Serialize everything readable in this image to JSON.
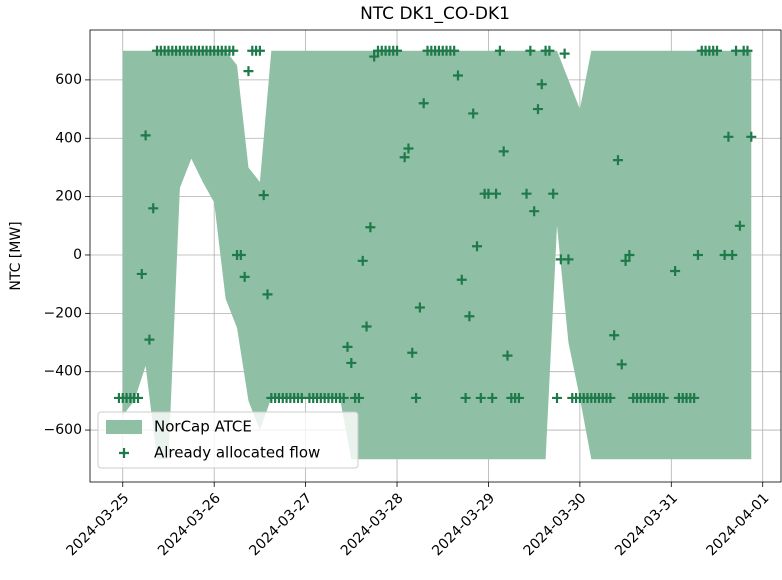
{
  "chart_data": {
    "type": "combo",
    "title": "NTC DK1_CO-DK1",
    "y_label": "NTC [MW]",
    "xlim": [
      "2024-03-24T15:24",
      "2024-04-01T04:48"
    ],
    "xticks": [
      "2024-03-25",
      "2024-03-26",
      "2024-03-27",
      "2024-03-28",
      "2024-03-29",
      "2024-03-30",
      "2024-03-31",
      "2024-04-01"
    ],
    "ylim": [
      -778,
      771
    ],
    "yticks": [
      {
        "value": -600,
        "label": "−600"
      },
      {
        "value": -400,
        "label": "−400"
      },
      {
        "value": -200,
        "label": "−200"
      },
      0,
      200,
      400,
      600
    ],
    "grid": true,
    "legend": "lower left",
    "series": [
      {
        "name": "NorCap ATCE",
        "type": "band",
        "color": "#8fbfa5",
        "x": [
          "2024-03-25T00:00",
          "2024-03-25T03:00",
          "2024-03-25T06:00",
          "2024-03-25T09:00",
          "2024-03-25T12:00",
          "2024-03-25T15:00",
          "2024-03-25T18:00",
          "2024-03-25T21:00",
          "2024-03-26T00:00",
          "2024-03-26T03:00",
          "2024-03-26T06:00",
          "2024-03-26T09:00",
          "2024-03-26T12:00",
          "2024-03-26T15:00",
          "2024-03-26T18:00",
          "2024-03-26T21:00",
          "2024-03-27T00:00",
          "2024-03-27T03:00",
          "2024-03-27T06:00",
          "2024-03-27T09:00",
          "2024-03-27T12:00",
          "2024-03-27T15:00",
          "2024-03-27T18:00",
          "2024-03-27T21:00",
          "2024-03-28T00:00",
          "2024-03-28T03:00",
          "2024-03-28T06:00",
          "2024-03-28T09:00",
          "2024-03-28T12:00",
          "2024-03-28T15:00",
          "2024-03-28T18:00",
          "2024-03-28T21:00",
          "2024-03-29T00:00",
          "2024-03-29T03:00",
          "2024-03-29T06:00",
          "2024-03-29T09:00",
          "2024-03-29T12:00",
          "2024-03-29T15:00",
          "2024-03-29T18:00",
          "2024-03-29T21:00",
          "2024-03-30T00:00",
          "2024-03-30T03:00",
          "2024-03-30T06:00",
          "2024-03-30T09:00",
          "2024-03-30T12:00",
          "2024-03-30T15:00",
          "2024-03-30T18:00",
          "2024-03-30T21:00",
          "2024-03-31T00:00",
          "2024-03-31T03:00",
          "2024-03-31T06:00",
          "2024-03-31T09:00",
          "2024-03-31T12:00",
          "2024-03-31T15:00",
          "2024-03-31T18:00",
          "2024-03-31T21:00"
        ],
        "upper": [
          700,
          700,
          700,
          700,
          700,
          700,
          700,
          700,
          700,
          700,
          650,
          300,
          250,
          700,
          700,
          700,
          700,
          700,
          700,
          700,
          700,
          700,
          700,
          700,
          700,
          700,
          700,
          700,
          700,
          700,
          700,
          700,
          700,
          700,
          700,
          700,
          700,
          700,
          700,
          600,
          500,
          700,
          700,
          700,
          700,
          700,
          700,
          700,
          700,
          700,
          700,
          700,
          700,
          700,
          700,
          700
        ],
        "lower": [
          -550,
          -500,
          -380,
          -700,
          -700,
          230,
          330,
          250,
          180,
          -150,
          -250,
          -500,
          -600,
          -490,
          -490,
          -490,
          -490,
          -490,
          -490,
          -490,
          -700,
          -700,
          -700,
          -700,
          -700,
          -700,
          -700,
          -700,
          -700,
          -700,
          -700,
          -700,
          -700,
          -700,
          -700,
          -700,
          -700,
          -700,
          100,
          -300,
          -490,
          -700,
          -700,
          -700,
          -700,
          -700,
          -700,
          -700,
          -700,
          -700,
          -700,
          -700,
          -700,
          -700,
          -700,
          -700
        ]
      },
      {
        "name": "Already allocated flow",
        "type": "scatter",
        "color": "#1f7a4a",
        "x": [
          "2024-03-24T23:00",
          "2024-03-25T00:00",
          "2024-03-25T01:00",
          "2024-03-25T02:00",
          "2024-03-25T03:00",
          "2024-03-25T04:00",
          "2024-03-25T05:00",
          "2024-03-25T06:00",
          "2024-03-25T07:00",
          "2024-03-25T08:00",
          "2024-03-25T09:00",
          "2024-03-25T10:00",
          "2024-03-25T11:00",
          "2024-03-25T12:00",
          "2024-03-25T13:00",
          "2024-03-25T14:00",
          "2024-03-25T15:00",
          "2024-03-25T16:00",
          "2024-03-25T17:00",
          "2024-03-25T18:00",
          "2024-03-25T19:00",
          "2024-03-25T20:00",
          "2024-03-25T21:00",
          "2024-03-25T22:00",
          "2024-03-25T23:00",
          "2024-03-26T00:00",
          "2024-03-26T01:00",
          "2024-03-26T02:00",
          "2024-03-26T03:00",
          "2024-03-26T04:00",
          "2024-03-26T05:00",
          "2024-03-26T06:00",
          "2024-03-26T07:00",
          "2024-03-26T08:00",
          "2024-03-26T09:00",
          "2024-03-26T10:00",
          "2024-03-26T11:00",
          "2024-03-26T12:00",
          "2024-03-26T13:00",
          "2024-03-26T14:00",
          "2024-03-26T15:00",
          "2024-03-26T16:00",
          "2024-03-26T17:00",
          "2024-03-26T18:00",
          "2024-03-26T19:00",
          "2024-03-26T20:00",
          "2024-03-26T21:00",
          "2024-03-26T22:00",
          "2024-03-26T23:00",
          "2024-03-27T01:00",
          "2024-03-27T02:00",
          "2024-03-27T03:00",
          "2024-03-27T04:00",
          "2024-03-27T05:00",
          "2024-03-27T06:00",
          "2024-03-27T07:00",
          "2024-03-27T08:00",
          "2024-03-27T09:00",
          "2024-03-27T10:00",
          "2024-03-27T11:00",
          "2024-03-27T12:00",
          "2024-03-27T13:00",
          "2024-03-27T14:00",
          "2024-03-27T15:00",
          "2024-03-27T16:00",
          "2024-03-27T17:00",
          "2024-03-27T18:00",
          "2024-03-27T19:00",
          "2024-03-27T20:00",
          "2024-03-27T21:00",
          "2024-03-27T22:00",
          "2024-03-27T23:00",
          "2024-03-28T00:00",
          "2024-03-28T02:00",
          "2024-03-28T03:00",
          "2024-03-28T04:00",
          "2024-03-28T05:00",
          "2024-03-28T06:00",
          "2024-03-28T07:00",
          "2024-03-28T08:00",
          "2024-03-28T09:00",
          "2024-03-28T10:00",
          "2024-03-28T11:00",
          "2024-03-28T12:00",
          "2024-03-28T13:00",
          "2024-03-28T14:00",
          "2024-03-28T15:00",
          "2024-03-28T16:00",
          "2024-03-28T17:00",
          "2024-03-28T18:00",
          "2024-03-28T19:00",
          "2024-03-28T20:00",
          "2024-03-28T21:00",
          "2024-03-28T22:00",
          "2024-03-28T23:00",
          "2024-03-29T00:00",
          "2024-03-29T01:00",
          "2024-03-29T02:00",
          "2024-03-29T03:00",
          "2024-03-29T04:00",
          "2024-03-29T05:00",
          "2024-03-29T06:00",
          "2024-03-29T07:00",
          "2024-03-29T08:00",
          "2024-03-29T10:00",
          "2024-03-29T11:00",
          "2024-03-29T12:00",
          "2024-03-29T13:00",
          "2024-03-29T14:00",
          "2024-03-29T15:00",
          "2024-03-29T16:00",
          "2024-03-29T17:00",
          "2024-03-29T18:00",
          "2024-03-29T19:00",
          "2024-03-29T20:00",
          "2024-03-29T21:00",
          "2024-03-29T22:00",
          "2024-03-29T23:00",
          "2024-03-30T00:00",
          "2024-03-30T01:00",
          "2024-03-30T02:00",
          "2024-03-30T03:00",
          "2024-03-30T04:00",
          "2024-03-30T05:00",
          "2024-03-30T06:00",
          "2024-03-30T07:00",
          "2024-03-30T08:00",
          "2024-03-30T09:00",
          "2024-03-30T10:00",
          "2024-03-30T11:00",
          "2024-03-30T12:00",
          "2024-03-30T13:00",
          "2024-03-30T14:00",
          "2024-03-30T15:00",
          "2024-03-30T16:00",
          "2024-03-30T17:00",
          "2024-03-30T18:00",
          "2024-03-30T19:00",
          "2024-03-30T20:00",
          "2024-03-30T21:00",
          "2024-03-30T22:00",
          "2024-03-31T01:00",
          "2024-03-31T02:00",
          "2024-03-31T03:00",
          "2024-03-31T04:00",
          "2024-03-31T05:00",
          "2024-03-31T06:00",
          "2024-03-31T07:00",
          "2024-03-31T08:00",
          "2024-03-31T09:00",
          "2024-03-31T10:00",
          "2024-03-31T11:00",
          "2024-03-31T12:00",
          "2024-03-31T14:00",
          "2024-03-31T15:00",
          "2024-03-31T16:00",
          "2024-03-31T17:00",
          "2024-03-31T18:00",
          "2024-03-31T19:00",
          "2024-03-31T20:00",
          "2024-03-31T21:00"
        ],
        "values": [
          -490,
          -490,
          -490,
          -490,
          -490,
          -490,
          -65,
          410,
          -290,
          160,
          700,
          700,
          700,
          700,
          700,
          700,
          700,
          700,
          700,
          700,
          700,
          700,
          700,
          700,
          700,
          700,
          700,
          700,
          700,
          700,
          700,
          0,
          0,
          -75,
          630,
          700,
          700,
          700,
          205,
          -135,
          -490,
          -490,
          -490,
          -490,
          -490,
          -490,
          -490,
          -490,
          -490,
          -490,
          -490,
          -490,
          -490,
          -490,
          -490,
          -490,
          -490,
          -490,
          -490,
          -315,
          -370,
          -490,
          -490,
          -20,
          -245,
          95,
          680,
          700,
          700,
          700,
          700,
          700,
          700,
          335,
          365,
          -335,
          -490,
          -180,
          520,
          700,
          700,
          700,
          700,
          700,
          700,
          700,
          700,
          615,
          -85,
          -490,
          -210,
          485,
          30,
          -490,
          210,
          210,
          -490,
          210,
          700,
          355,
          -345,
          -490,
          -490,
          -490,
          210,
          700,
          150,
          500,
          585,
          700,
          700,
          210,
          -490,
          -15,
          690,
          -15,
          -490,
          -490,
          -490,
          -490,
          -490,
          -490,
          -490,
          -490,
          -490,
          -490,
          -490,
          -275,
          325,
          -375,
          -20,
          0,
          -490,
          -490,
          -490,
          -490,
          -490,
          -490,
          -490,
          -490,
          -490,
          -55,
          -490,
          -490,
          -490,
          -490,
          -490,
          0,
          700,
          700,
          700,
          700,
          700,
          0,
          405,
          0,
          700,
          100,
          700,
          700,
          405
        ]
      }
    ]
  }
}
